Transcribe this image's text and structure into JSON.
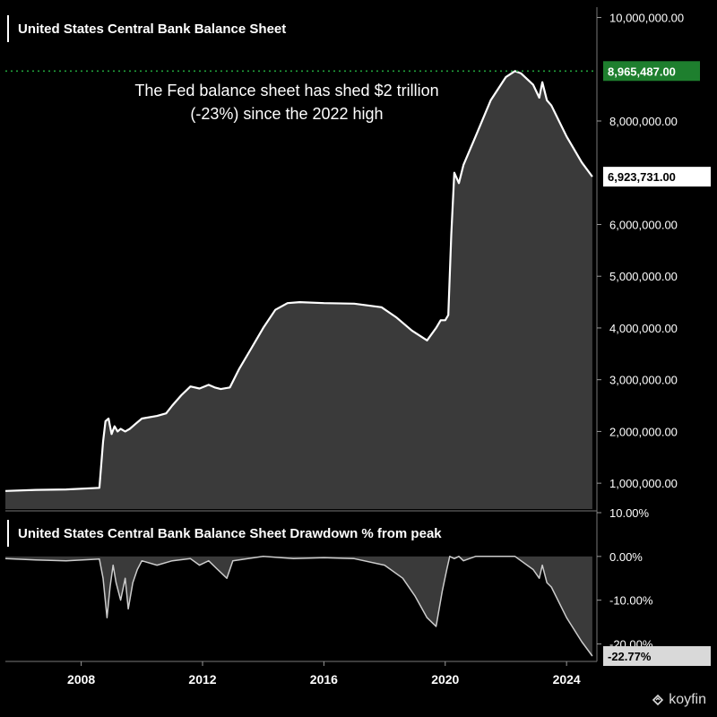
{
  "top_panel": {
    "title": "United States Central Bank Balance Sheet",
    "annotation_line1": "The Fed balance sheet has shed $2 trillion",
    "annotation_line2": "(-23%) since the 2022 high"
  },
  "bottom_panel": {
    "title": "United States Central Bank Balance Sheet  Drawdown % from peak"
  },
  "branding": {
    "logo_text": "koyfin",
    "logo_icon": "koyfin-logo-icon"
  },
  "colors": {
    "background": "#000000",
    "line": "#ffffff",
    "area_fill": "#3a3a3a",
    "peak_line": "#1f9d3a",
    "peak_badge_bg": "#1e7f2e",
    "last_badge_bg": "#ffffff",
    "drawdown_badge_bg": "#d9d9d9",
    "axis_text": "#ffffff"
  },
  "chart_data": [
    {
      "type": "area",
      "title": "United States Central Bank Balance Sheet",
      "x_ticks": [
        "2008",
        "2012",
        "2016",
        "2020",
        "2024"
      ],
      "y_ticks": [
        "1,000,000.00",
        "2,000,000.00",
        "3,000,000.00",
        "4,000,000.00",
        "5,000,000.00",
        "6,000,000.00",
        "8,000,000.00",
        "10,000,000.00"
      ],
      "ylim": [
        500000,
        10200000
      ],
      "xlim": [
        2005.5,
        2025.0
      ],
      "peak_label": "8,965,487.00",
      "peak_value": 8965487,
      "last_label": "6,923,731.00",
      "last_value": 6923731,
      "x": [
        2005.5,
        2006.5,
        2007.5,
        2008.6,
        2008.72,
        2008.8,
        2008.9,
        2009.0,
        2009.1,
        2009.2,
        2009.3,
        2009.45,
        2009.6,
        2009.8,
        2010.0,
        2010.5,
        2010.8,
        2011.0,
        2011.3,
        2011.6,
        2011.9,
        2012.2,
        2012.4,
        2012.6,
        2012.9,
        2013.2,
        2013.6,
        2014.0,
        2014.4,
        2014.8,
        2015.2,
        2016.0,
        2017.0,
        2017.9,
        2018.4,
        2018.9,
        2019.4,
        2019.7,
        2019.85,
        2020.0,
        2020.1,
        2020.2,
        2020.3,
        2020.45,
        2020.6,
        2021.0,
        2021.5,
        2022.0,
        2022.3,
        2022.5,
        2022.9,
        2023.1,
        2023.2,
        2023.35,
        2023.5,
        2024.0,
        2024.5,
        2024.85
      ],
      "values": [
        850000,
        870000,
        880000,
        910000,
        1800000,
        2200000,
        2250000,
        1950000,
        2100000,
        2000000,
        2050000,
        2000000,
        2050000,
        2150000,
        2250000,
        2300000,
        2350000,
        2500000,
        2700000,
        2870000,
        2830000,
        2900000,
        2850000,
        2820000,
        2850000,
        3200000,
        3600000,
        4000000,
        4350000,
        4480000,
        4500000,
        4480000,
        4470000,
        4400000,
        4200000,
        3950000,
        3760000,
        4000000,
        4150000,
        4150000,
        4250000,
        5800000,
        7000000,
        6800000,
        7150000,
        7700000,
        8400000,
        8850000,
        8965487,
        8920000,
        8700000,
        8450000,
        8750000,
        8400000,
        8300000,
        7700000,
        7200000,
        6923731
      ]
    },
    {
      "type": "area",
      "title": "United States Central Bank Balance Sheet  Drawdown % from peak",
      "y_ticks": [
        "10.00%",
        "0.00%",
        "-10.00%",
        "-20.00%"
      ],
      "ylim": [
        -24,
        10
      ],
      "xlim": [
        2005.5,
        2025.0
      ],
      "last_label": "-22.77%",
      "last_value": -22.77,
      "x": [
        2005.5,
        2006.5,
        2007.5,
        2008.6,
        2008.72,
        2008.85,
        2008.95,
        2009.05,
        2009.15,
        2009.3,
        2009.45,
        2009.55,
        2009.7,
        2009.85,
        2010.0,
        2010.5,
        2011.0,
        2011.6,
        2011.9,
        2012.2,
        2012.5,
        2012.8,
        2013.0,
        2014.0,
        2015.0,
        2016.0,
        2017.0,
        2018.0,
        2018.6,
        2019.0,
        2019.4,
        2019.7,
        2019.8,
        2019.9,
        2020.05,
        2020.15,
        2020.3,
        2020.45,
        2020.6,
        2021.0,
        2022.0,
        2022.3,
        2022.9,
        2023.1,
        2023.2,
        2023.35,
        2023.5,
        2024.0,
        2024.5,
        2024.85
      ],
      "values": [
        -0.5,
        -0.8,
        -1.0,
        -0.6,
        -5.0,
        -14.0,
        -7.0,
        -2.0,
        -6.0,
        -10.0,
        -5.0,
        -12.0,
        -6.0,
        -3.0,
        -1.0,
        -2.0,
        -1.0,
        -0.5,
        -2.0,
        -1.0,
        -3.0,
        -5.0,
        -1.0,
        0.0,
        -0.5,
        -0.3,
        -0.5,
        -2.0,
        -5.0,
        -9.0,
        -14.0,
        -16.0,
        -12.0,
        -8.0,
        -3.0,
        0.0,
        -0.5,
        0.0,
        -1.0,
        0.0,
        0.0,
        0.0,
        -3.0,
        -5.0,
        -2.0,
        -6.0,
        -7.0,
        -14.0,
        -19.5,
        -22.77
      ]
    }
  ]
}
